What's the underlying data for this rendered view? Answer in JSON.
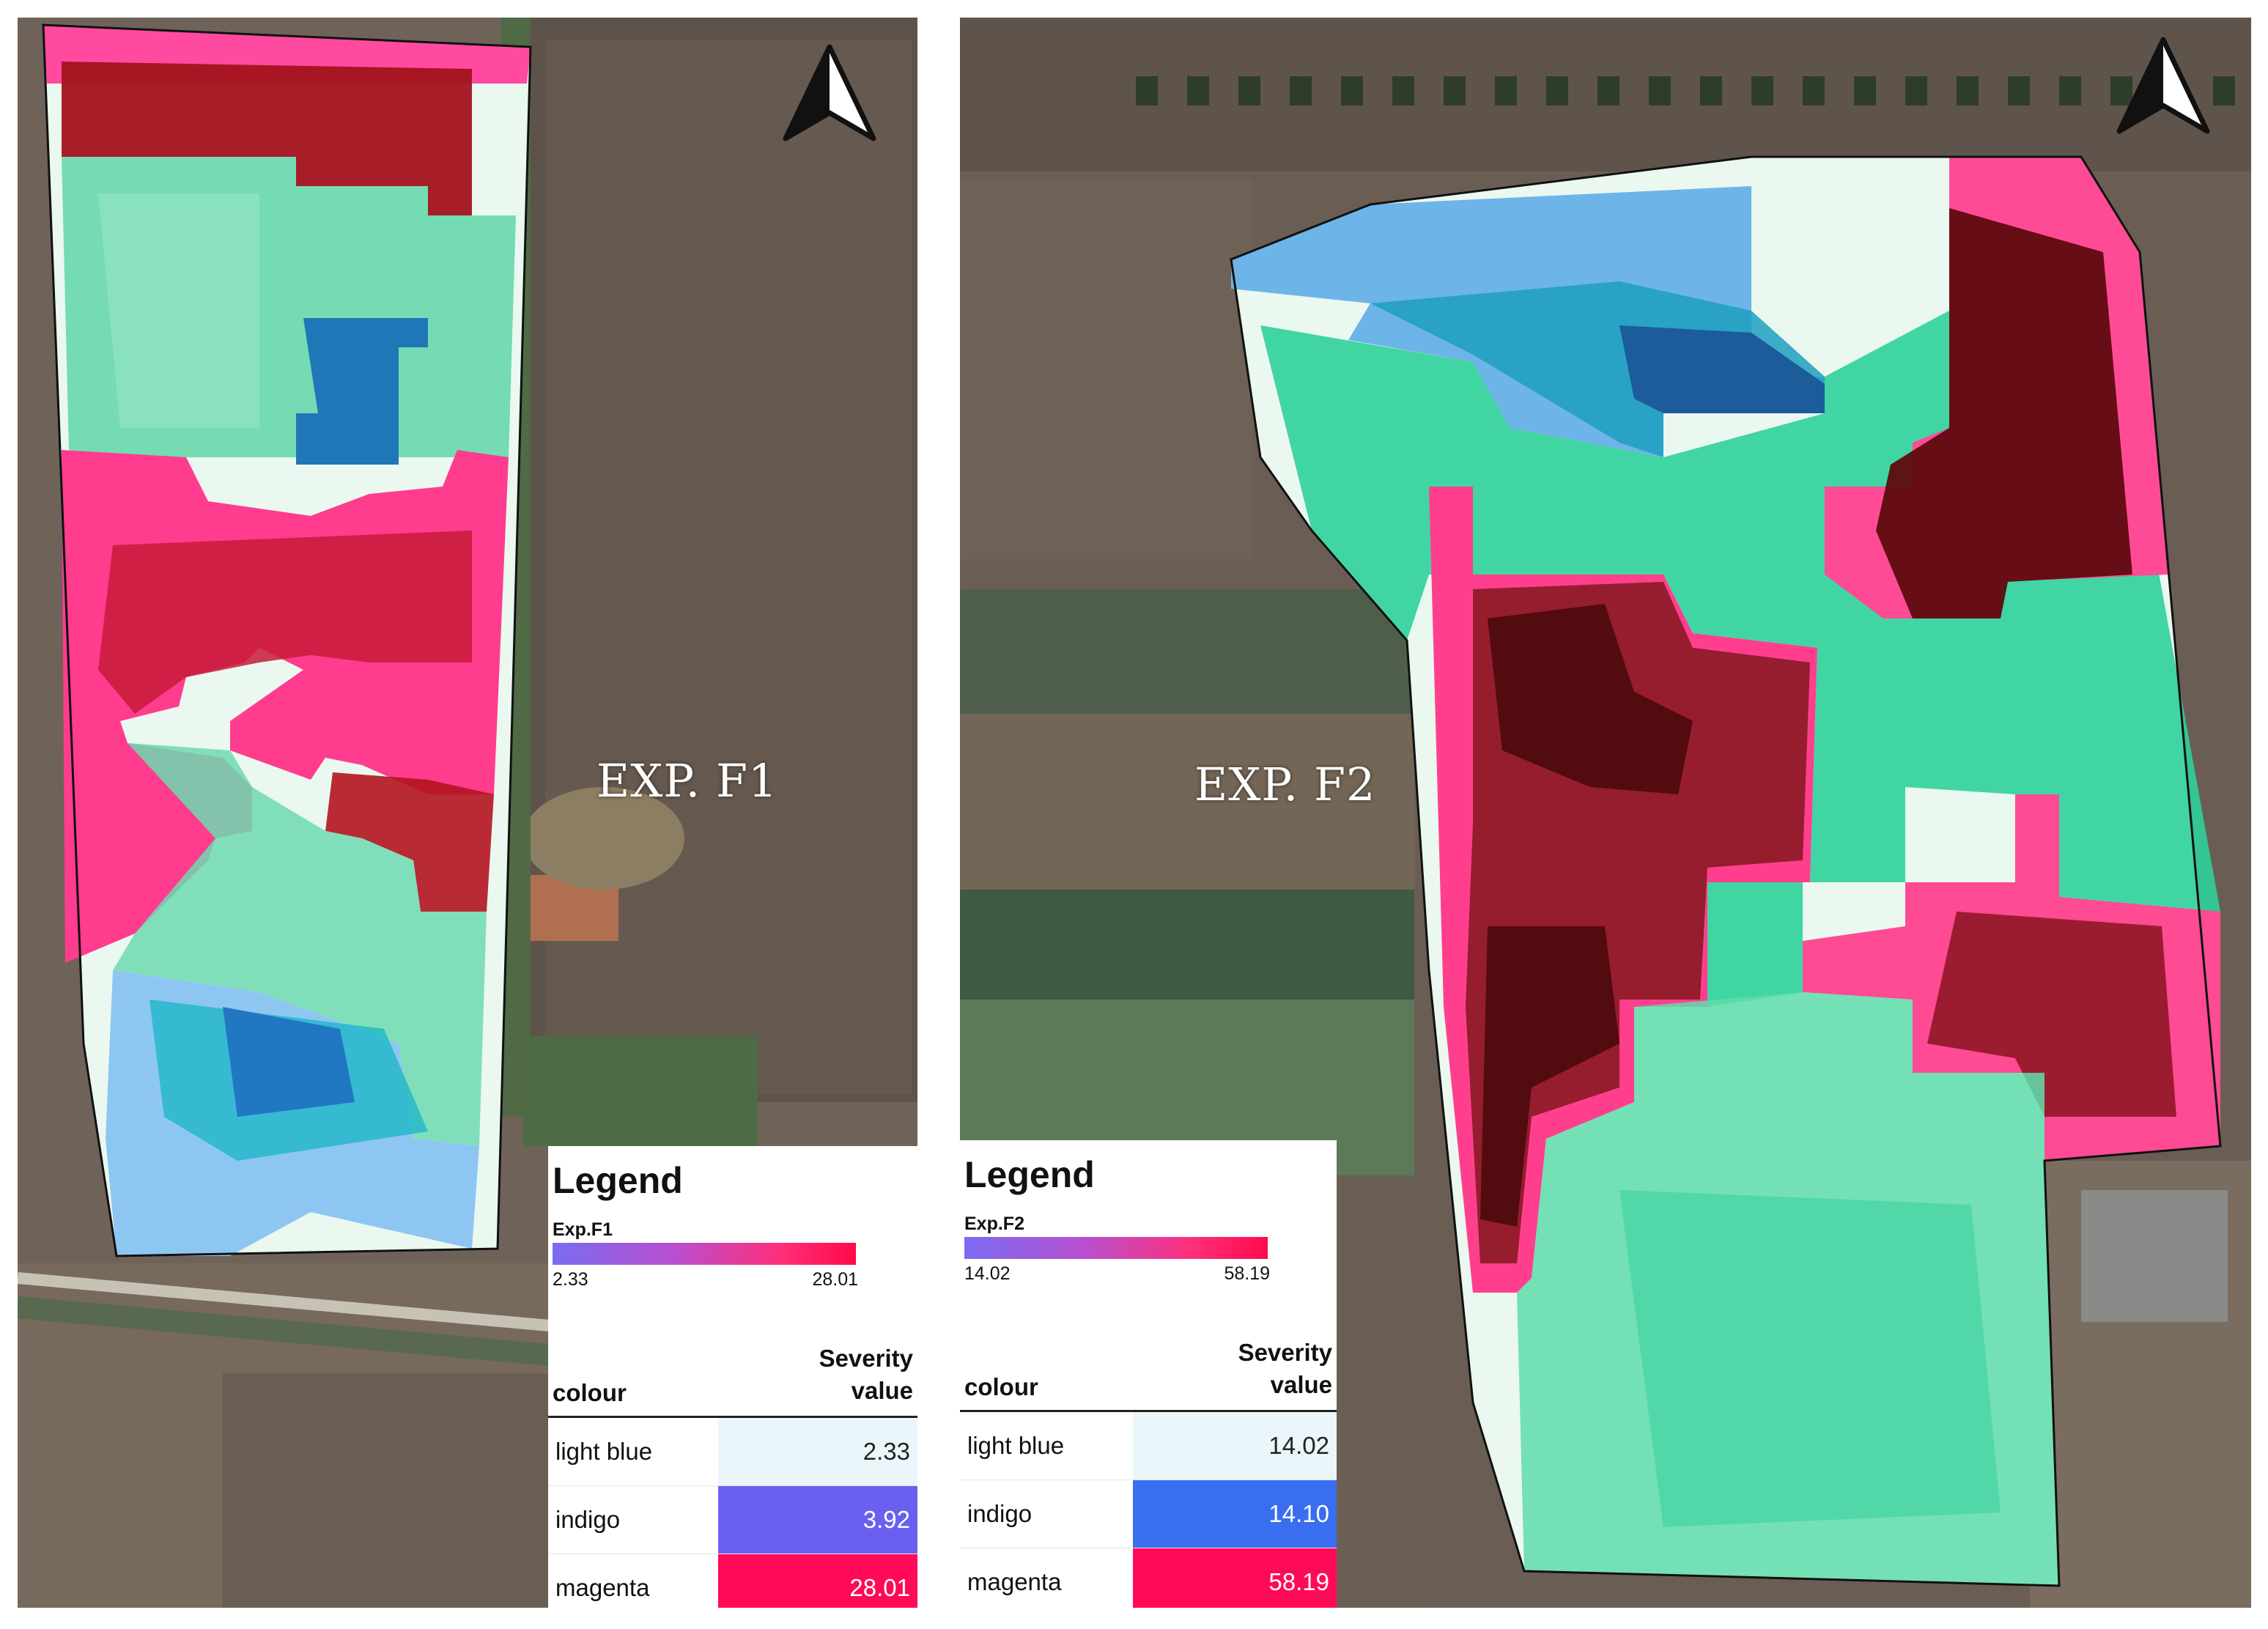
{
  "maps": [
    {
      "id": "f1",
      "label": "EXP. F1",
      "legend": {
        "title": "Legend",
        "subtitle": "Exp.F1",
        "gradient_min": "2.33",
        "gradient_max": "28.01",
        "col_colour": "colour",
        "col_severity_1": "Severity",
        "col_severity_2": "value",
        "rows": [
          {
            "colour": "light blue",
            "value": "2.33",
            "swatch": "#eaf6fa"
          },
          {
            "colour": "indigo",
            "value": "3.92",
            "swatch": "#6a60f0"
          },
          {
            "colour": "magenta",
            "value": "28.01",
            "swatch": "#ff0a56"
          }
        ]
      }
    },
    {
      "id": "f2",
      "label": "EXP. F2",
      "legend": {
        "title": "Legend",
        "subtitle": "Exp.F2",
        "gradient_min": "14.02",
        "gradient_max": "58.19",
        "col_colour": "colour",
        "col_severity_1": "Severity",
        "col_severity_2": "value",
        "rows": [
          {
            "colour": "light blue",
            "value": "14.02",
            "swatch": "#eaf6fa"
          },
          {
            "colour": "indigo",
            "value": "14.10",
            "swatch": "#3a6ef0"
          },
          {
            "colour": "magenta",
            "value": "58.19",
            "swatch": "#ff0a56"
          }
        ]
      }
    }
  ],
  "icons": [
    "north-arrow-icon",
    "north-arrow-icon"
  ],
  "colors": {
    "low": "#3fa9e0",
    "mid": "#2fd39a",
    "high": "#ff3f86",
    "severe": "#8a0f16"
  }
}
